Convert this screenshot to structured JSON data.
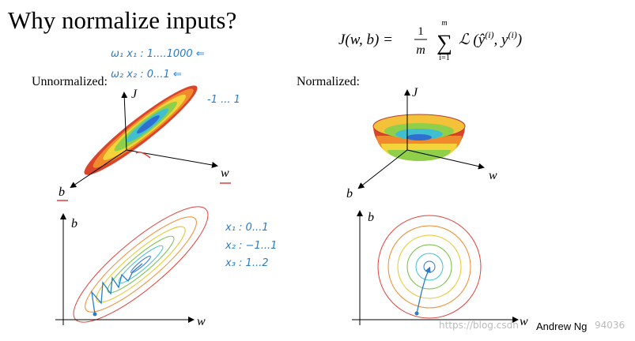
{
  "slide": {
    "title": "Why normalize inputs?",
    "formula": {
      "lhs": "J(w, b) =",
      "num": "1",
      "den": "m",
      "sum_top": "m",
      "sum_bottom": "i=1",
      "loss": "ℒ (ŷ",
      "sup1": "(i)",
      "mid": ", y",
      "sup2": "(i)",
      "close": ")"
    },
    "left_label": "Unnormalized:",
    "right_label": "Normalized:",
    "notes_top": [
      "ω₁   x₁ :  1....1000 ⇐",
      "ω₂   x₂ :  0...1 ⇐",
      "-1 ... 1"
    ],
    "notes_bottom": [
      "x₁ : 0...1",
      "x₂ : −1...1",
      "x₃ : 1...2"
    ],
    "surface_left_axes": [
      "J",
      "w",
      "b"
    ],
    "surface_right_axes": [
      "J",
      "w",
      "b"
    ],
    "contour_left_axes": [
      "b",
      "w"
    ],
    "contour_right_axes": [
      "b",
      "w"
    ],
    "author": "Andrew Ng",
    "watermark": [
      "https://blog.csdn",
      "94036"
    ]
  }
}
